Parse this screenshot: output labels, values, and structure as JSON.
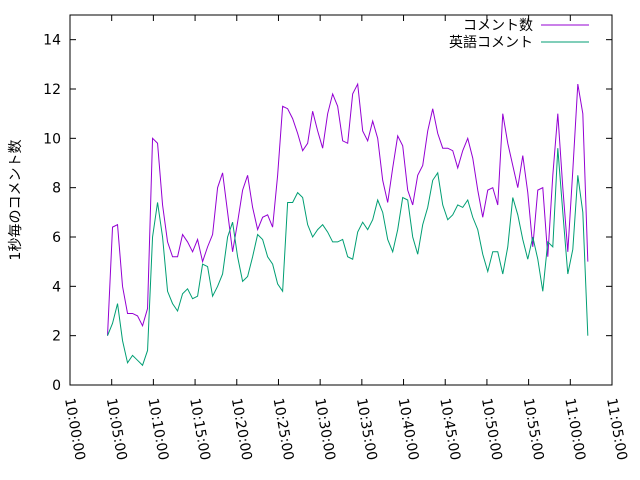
{
  "chart_data": {
    "type": "line",
    "ylabel": "1秒毎のコメント数",
    "x": [
      "10:04:30",
      "10:05:06",
      "10:05:42",
      "10:06:18",
      "10:06:54",
      "10:07:30",
      "10:08:06",
      "10:08:42",
      "10:09:18",
      "10:09:54",
      "10:10:30",
      "10:11:06",
      "10:11:42",
      "10:12:18",
      "10:12:54",
      "10:13:30",
      "10:14:06",
      "10:14:42",
      "10:15:18",
      "10:15:54",
      "10:16:30",
      "10:17:06",
      "10:17:42",
      "10:18:18",
      "10:18:54",
      "10:19:30",
      "10:20:06",
      "10:20:42",
      "10:21:18",
      "10:21:54",
      "10:22:30",
      "10:23:06",
      "10:23:42",
      "10:24:18",
      "10:24:54",
      "10:25:30",
      "10:26:06",
      "10:26:42",
      "10:27:18",
      "10:27:54",
      "10:28:30",
      "10:29:06",
      "10:29:42",
      "10:30:18",
      "10:30:54",
      "10:31:30",
      "10:32:06",
      "10:32:42",
      "10:33:18",
      "10:33:54",
      "10:34:30",
      "10:35:06",
      "10:35:42",
      "10:36:18",
      "10:36:54",
      "10:37:30",
      "10:38:06",
      "10:38:42",
      "10:39:18",
      "10:39:54",
      "10:40:30",
      "10:41:06",
      "10:41:42",
      "10:42:18",
      "10:42:54",
      "10:43:30",
      "10:44:06",
      "10:44:42",
      "10:45:18",
      "10:45:54",
      "10:46:30",
      "10:47:06",
      "10:47:42",
      "10:48:18",
      "10:48:54",
      "10:49:30",
      "10:50:06",
      "10:50:42",
      "10:51:18",
      "10:51:54",
      "10:52:30",
      "10:53:06",
      "10:53:42",
      "10:54:18",
      "10:54:54",
      "10:55:30",
      "10:56:06",
      "10:56:42",
      "10:57:18",
      "10:57:54",
      "10:58:30",
      "10:59:06",
      "10:59:42",
      "11:00:18",
      "11:00:54",
      "11:01:30",
      "11:02:06"
    ],
    "series": [
      {
        "name": "コメント数",
        "color": "#9400d3",
        "values": [
          2.0,
          6.4,
          6.5,
          4.0,
          2.9,
          2.9,
          2.8,
          2.4,
          3.1,
          10.0,
          9.8,
          7.3,
          5.8,
          5.2,
          5.2,
          6.1,
          5.8,
          5.4,
          5.9,
          5.0,
          5.6,
          6.1,
          8.0,
          8.6,
          7.0,
          5.4,
          6.6,
          7.9,
          8.5,
          7.2,
          6.3,
          6.8,
          6.9,
          6.4,
          8.5,
          11.3,
          11.2,
          10.8,
          10.2,
          9.5,
          9.8,
          11.1,
          10.3,
          9.6,
          11.0,
          11.8,
          11.3,
          9.9,
          9.8,
          11.8,
          12.2,
          10.3,
          9.9,
          10.7,
          10.0,
          8.3,
          7.4,
          8.8,
          10.1,
          9.7,
          7.9,
          7.3,
          8.5,
          8.9,
          10.3,
          11.2,
          10.2,
          9.6,
          9.6,
          9.5,
          8.8,
          9.5,
          10.0,
          9.2,
          7.9,
          6.8,
          7.9,
          8.0,
          7.3,
          11.0,
          9.8,
          8.9,
          8.0,
          9.3,
          7.8,
          5.6,
          7.9,
          8.0,
          5.2,
          8.5,
          11.0,
          8.0,
          5.4,
          8.7,
          12.2,
          11.0,
          5.0
        ]
      },
      {
        "name": "英語コメント",
        "color": "#009e73",
        "values": [
          2.0,
          2.5,
          3.3,
          1.8,
          0.9,
          1.2,
          1.0,
          0.8,
          1.4,
          6.0,
          7.4,
          6.0,
          3.8,
          3.3,
          3.0,
          3.7,
          3.9,
          3.5,
          3.6,
          4.9,
          4.8,
          3.6,
          4.0,
          4.5,
          6.0,
          6.6,
          5.2,
          4.2,
          4.4,
          5.2,
          6.1,
          5.9,
          5.2,
          4.9,
          4.1,
          3.8,
          7.4,
          7.4,
          7.8,
          7.6,
          6.5,
          6.0,
          6.3,
          6.5,
          6.2,
          5.8,
          5.8,
          5.9,
          5.2,
          5.1,
          6.2,
          6.6,
          6.3,
          6.7,
          7.5,
          7.0,
          5.9,
          5.4,
          6.3,
          7.6,
          7.5,
          6.0,
          5.3,
          6.5,
          7.2,
          8.3,
          8.6,
          7.3,
          6.7,
          6.9,
          7.3,
          7.2,
          7.5,
          6.8,
          6.3,
          5.3,
          4.6,
          5.4,
          5.4,
          4.5,
          5.6,
          7.6,
          6.9,
          5.9,
          5.1,
          6.0,
          5.1,
          3.8,
          5.8,
          5.6,
          9.6,
          7.0,
          4.5,
          5.5,
          8.5,
          7.0,
          2.0
        ]
      }
    ],
    "xlim": [
      "10:00:00",
      "11:05:00"
    ],
    "xticks": [
      "10:00:00",
      "10:05:00",
      "10:10:00",
      "10:15:00",
      "10:20:00",
      "10:25:00",
      "10:30:00",
      "10:35:00",
      "10:40:00",
      "10:45:00",
      "10:50:00",
      "10:55:00",
      "11:00:00",
      "11:05:00"
    ],
    "ylim": [
      0,
      15
    ],
    "yticks": [
      0,
      2,
      4,
      6,
      8,
      10,
      12,
      14
    ],
    "grid": false,
    "legend": "top-right"
  }
}
